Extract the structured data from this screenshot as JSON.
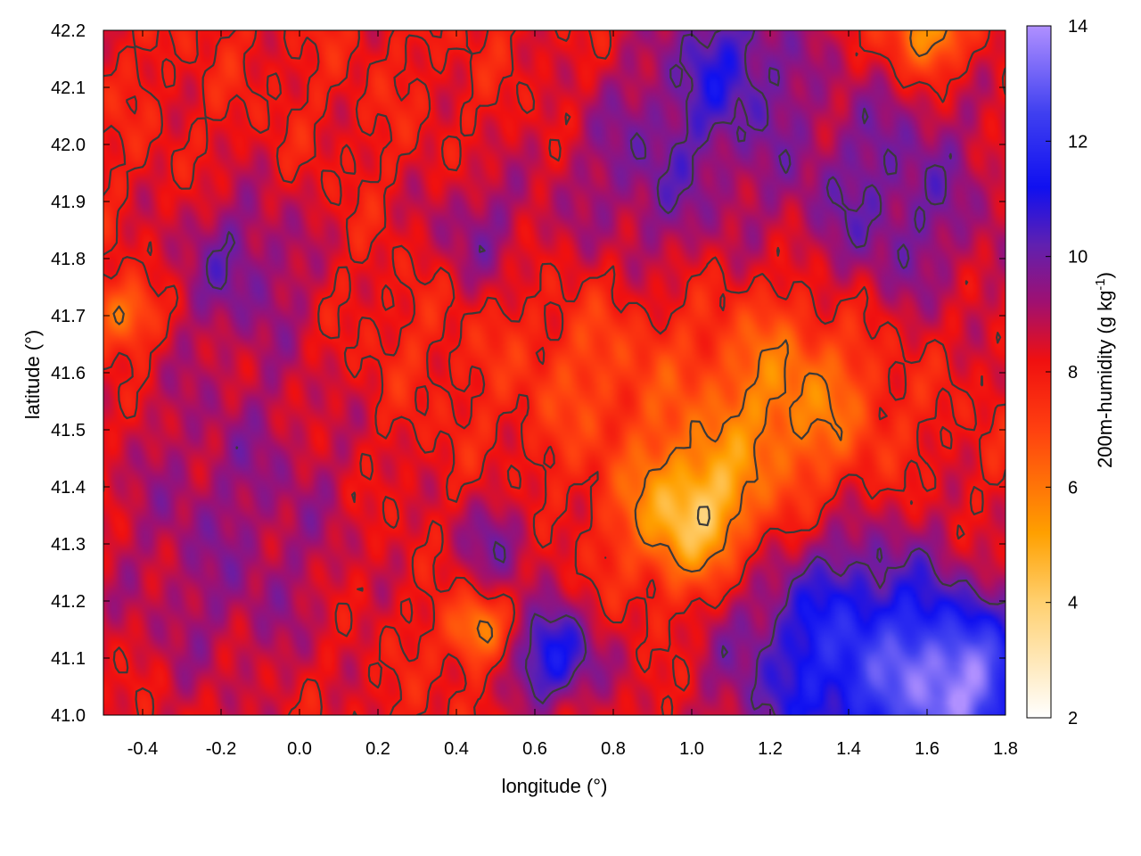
{
  "chart_data": {
    "type": "heatmap",
    "title": "",
    "xlabel": "longitude (°)",
    "ylabel": "latitude (°)",
    "xlim": [
      -0.5,
      1.8
    ],
    "ylim": [
      41.0,
      42.2
    ],
    "xticks": [
      -0.4,
      -0.2,
      0.0,
      0.2,
      0.4,
      0.6,
      0.8,
      1.0,
      1.2,
      1.4,
      1.6,
      1.8
    ],
    "xtick_labels": [
      "-0.4",
      "-0.2",
      "0.0",
      "0.2",
      "0.4",
      "0.6",
      "0.8",
      "1.0",
      "1.2",
      "1.4",
      "1.6",
      "1.8"
    ],
    "yticks": [
      41.0,
      41.1,
      41.2,
      41.3,
      41.4,
      41.5,
      41.6,
      41.7,
      41.8,
      41.9,
      42.0,
      42.1,
      42.2
    ],
    "ytick_labels": [
      "41.0",
      "41.1",
      "41.2",
      "41.3",
      "41.4",
      "41.5",
      "41.6",
      "41.7",
      "41.8",
      "41.9",
      "42.0",
      "42.1",
      "42.2"
    ],
    "colorbar": {
      "label_main": "200m-humidity (g kg",
      "label_sup": "-1",
      "label_end": ")",
      "range": [
        2,
        14
      ],
      "ticks": [
        2,
        4,
        6,
        8,
        10,
        12,
        14
      ],
      "tick_labels": [
        "2",
        "4",
        "6",
        "8",
        "10",
        "12",
        "14"
      ],
      "stops": [
        {
          "v": 2,
          "color": "#ffffff"
        },
        {
          "v": 4,
          "color": "#ffd070"
        },
        {
          "v": 5.2,
          "color": "#ffa000"
        },
        {
          "v": 7,
          "color": "#ff4010"
        },
        {
          "v": 8.2,
          "color": "#f01010"
        },
        {
          "v": 9.2,
          "color": "#a01070"
        },
        {
          "v": 10.2,
          "color": "#6020b0"
        },
        {
          "v": 11.2,
          "color": "#1010f0"
        },
        {
          "v": 12.5,
          "color": "#4040f0"
        },
        {
          "v": 14,
          "color": "#b090ff"
        }
      ]
    },
    "field_features": [
      {
        "lon": -0.15,
        "lat": 41.45,
        "value": 9.0,
        "spread": 0.35
      },
      {
        "lon": -0.2,
        "lat": 41.2,
        "value": 8.9,
        "spread": 0.3
      },
      {
        "lon": -0.15,
        "lat": 41.8,
        "value": 9.6,
        "spread": 0.18
      },
      {
        "lon": 0.45,
        "lat": 41.85,
        "value": 9.4,
        "spread": 0.15
      },
      {
        "lon": 0.9,
        "lat": 41.95,
        "value": 9.7,
        "spread": 0.25
      },
      {
        "lon": 1.5,
        "lat": 41.9,
        "value": 10.0,
        "spread": 0.3
      },
      {
        "lon": 1.1,
        "lat": 42.15,
        "value": 10.2,
        "spread": 0.18
      },
      {
        "lon": 1.6,
        "lat": 42.2,
        "value": 5.0,
        "spread": 0.1
      },
      {
        "lon": 1.0,
        "lat": 41.35,
        "value": 4.3,
        "spread": 0.16
      },
      {
        "lon": 1.25,
        "lat": 41.55,
        "value": 5.6,
        "spread": 0.25
      },
      {
        "lon": 1.4,
        "lat": 41.1,
        "value": 11.8,
        "spread": 0.3
      },
      {
        "lon": 1.7,
        "lat": 41.05,
        "value": 12.5,
        "spread": 0.18
      },
      {
        "lon": 0.65,
        "lat": 41.1,
        "value": 11.2,
        "spread": 0.12
      },
      {
        "lon": 0.45,
        "lat": 41.15,
        "value": 5.5,
        "spread": 0.08
      },
      {
        "lon": -0.45,
        "lat": 41.7,
        "value": 5.5,
        "spread": 0.08
      },
      {
        "lon": 0.75,
        "lat": 41.6,
        "value": 7.0,
        "spread": 0.2
      },
      {
        "lon": 0.3,
        "lat": 41.65,
        "value": 7.6,
        "spread": 0.2
      },
      {
        "lon": 0.5,
        "lat": 41.3,
        "value": 9.5,
        "spread": 0.12
      }
    ],
    "grid": false
  }
}
